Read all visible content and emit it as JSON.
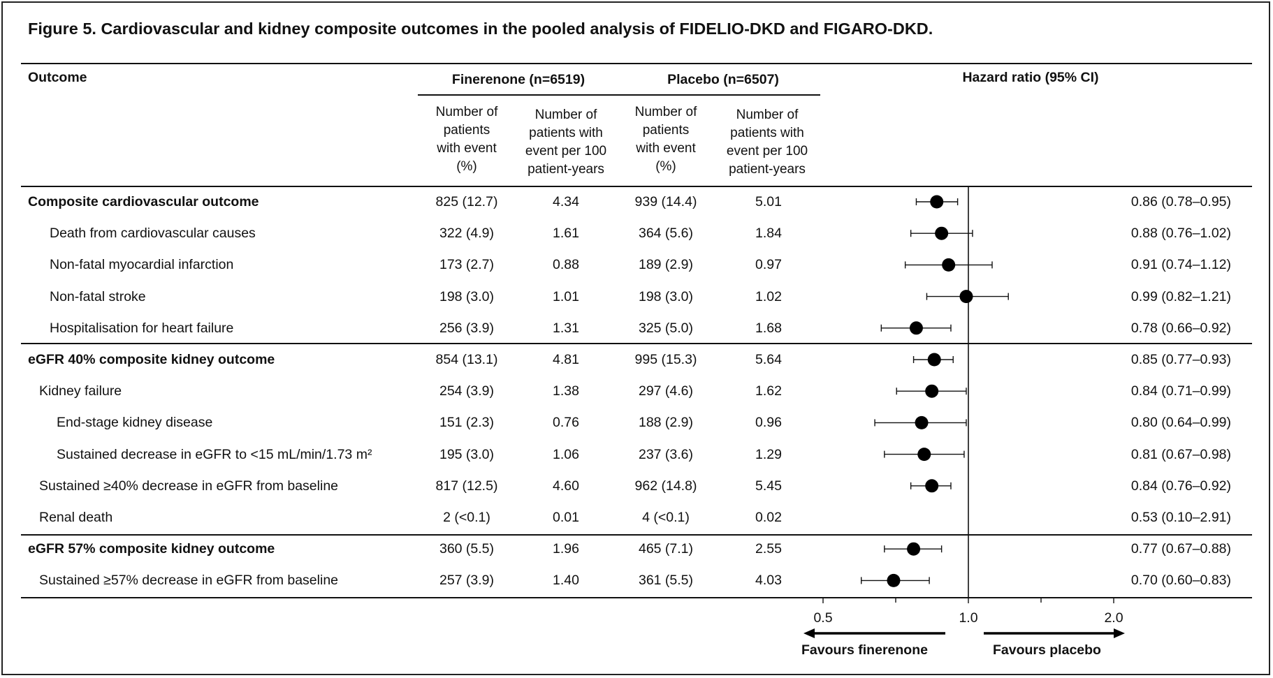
{
  "title": "Figure 5. Cardiovascular and kidney composite outcomes in the pooled analysis of FIDELIO-DKD and FIGARO-DKD.",
  "headers": {
    "outcome": "Outcome",
    "finerenone_group": "Finerenone (n=6519)",
    "placebo_group": "Placebo (n=6507)",
    "hazard_ratio": "Hazard ratio (95% CI)",
    "sub_count": [
      "Number of",
      "patients",
      "with event",
      "(%)"
    ],
    "sub_rate": [
      "Number of",
      "patients with",
      "event per 100",
      "patient-years"
    ]
  },
  "rows": [
    {
      "label": "Composite cardiovascular outcome",
      "bold": true,
      "indent": 0,
      "fin_n": "825 (12.7)",
      "fin_rate": "4.34",
      "pla_n": "939 (14.4)",
      "pla_rate": "5.01",
      "hr_text": "0.86 (0.78–0.95)"
    },
    {
      "label": "Death from cardiovascular causes",
      "bold": false,
      "indent": 2,
      "fin_n": "322 (4.9)",
      "fin_rate": "1.61",
      "pla_n": "364 (5.6)",
      "pla_rate": "1.84",
      "hr_text": "0.88 (0.76–1.02)"
    },
    {
      "label": "Non-fatal myocardial infarction",
      "bold": false,
      "indent": 2,
      "fin_n": "173 (2.7)",
      "fin_rate": "0.88",
      "pla_n": "189 (2.9)",
      "pla_rate": "0.97",
      "hr_text": "0.91 (0.74–1.12)"
    },
    {
      "label": "Non-fatal stroke",
      "bold": false,
      "indent": 2,
      "fin_n": "198 (3.0)",
      "fin_rate": "1.01",
      "pla_n": "198 (3.0)",
      "pla_rate": "1.02",
      "hr_text": "0.99 (0.82–1.21)"
    },
    {
      "label": "Hospitalisation for heart failure",
      "bold": false,
      "indent": 2,
      "fin_n": "256 (3.9)",
      "fin_rate": "1.31",
      "pla_n": "325 (5.0)",
      "pla_rate": "1.68",
      "hr_text": "0.78 (0.66–0.92)"
    },
    {
      "label": "eGFR 40% composite kidney outcome",
      "bold": true,
      "indent": 0,
      "fin_n": "854 (13.1)",
      "fin_rate": "4.81",
      "pla_n": "995 (15.3)",
      "pla_rate": "5.64",
      "hr_text": "0.85 (0.77–0.93)"
    },
    {
      "label": "Kidney failure",
      "bold": false,
      "indent": 1,
      "fin_n": "254 (3.9)",
      "fin_rate": "1.38",
      "pla_n": "297 (4.6)",
      "pla_rate": "1.62",
      "hr_text": "0.84 (0.71–0.99)"
    },
    {
      "label": "End-stage kidney disease",
      "bold": false,
      "indent": 3,
      "fin_n": "151 (2.3)",
      "fin_rate": "0.76",
      "pla_n": "188 (2.9)",
      "pla_rate": "0.96",
      "hr_text": "0.80 (0.64–0.99)"
    },
    {
      "label": "Sustained decrease in eGFR to <15 mL/min/1.73 m²",
      "bold": false,
      "indent": 3,
      "fin_n": "195 (3.0)",
      "fin_rate": "1.06",
      "pla_n": "237 (3.6)",
      "pla_rate": "1.29",
      "hr_text": "0.81 (0.67–0.98)"
    },
    {
      "label": "Sustained ≥40% decrease in eGFR from baseline",
      "bold": false,
      "indent": 1,
      "fin_n": "817 (12.5)",
      "fin_rate": "4.60",
      "pla_n": "962 (14.8)",
      "pla_rate": "5.45",
      "hr_text": "0.84 (0.76–0.92)"
    },
    {
      "label": "Renal death",
      "bold": false,
      "indent": 1,
      "fin_n": "2 (<0.1)",
      "fin_rate": "0.01",
      "pla_n": "4 (<0.1)",
      "pla_rate": "0.02",
      "hr_text": "0.53 (0.10–2.91)"
    },
    {
      "label": "eGFR 57% composite kidney outcome",
      "bold": true,
      "indent": 0,
      "fin_n": "360 (5.5)",
      "fin_rate": "1.96",
      "pla_n": "465 (7.1)",
      "pla_rate": "2.55",
      "hr_text": "0.77 (0.67–0.88)"
    },
    {
      "label": "Sustained ≥57% decrease in eGFR from baseline",
      "bold": false,
      "indent": 1,
      "fin_n": "257 (3.9)",
      "fin_rate": "1.40",
      "pla_n": "361 (5.5)",
      "pla_rate": "4.03",
      "hr_text": "0.70 (0.60–0.83)"
    }
  ],
  "chart_data": {
    "type": "scatter",
    "xscale": "log2",
    "xlim": [
      0.5,
      2.0
    ],
    "xticks": [
      0.5,
      1.0,
      2.0
    ],
    "xtick_labels": [
      "0.5",
      "1.0",
      "2.0"
    ],
    "minor_ticks": [
      0.7071,
      1.4142
    ],
    "reference_line": 1.0,
    "left_label": "Favours finerenone",
    "right_label": "Favours placebo",
    "points": [
      {
        "hr": 0.86,
        "lo": 0.78,
        "hi": 0.95
      },
      {
        "hr": 0.88,
        "lo": 0.76,
        "hi": 1.02
      },
      {
        "hr": 0.91,
        "lo": 0.74,
        "hi": 1.12
      },
      {
        "hr": 0.99,
        "lo": 0.82,
        "hi": 1.21
      },
      {
        "hr": 0.78,
        "lo": 0.66,
        "hi": 0.92
      },
      {
        "hr": 0.85,
        "lo": 0.77,
        "hi": 0.93
      },
      {
        "hr": 0.84,
        "lo": 0.71,
        "hi": 0.99
      },
      {
        "hr": 0.8,
        "lo": 0.64,
        "hi": 0.99
      },
      {
        "hr": 0.81,
        "lo": 0.67,
        "hi": 0.98
      },
      {
        "hr": 0.84,
        "lo": 0.76,
        "hi": 0.92
      },
      null,
      {
        "hr": 0.77,
        "lo": 0.67,
        "hi": 0.88
      },
      {
        "hr": 0.7,
        "lo": 0.6,
        "hi": 0.83
      }
    ]
  }
}
